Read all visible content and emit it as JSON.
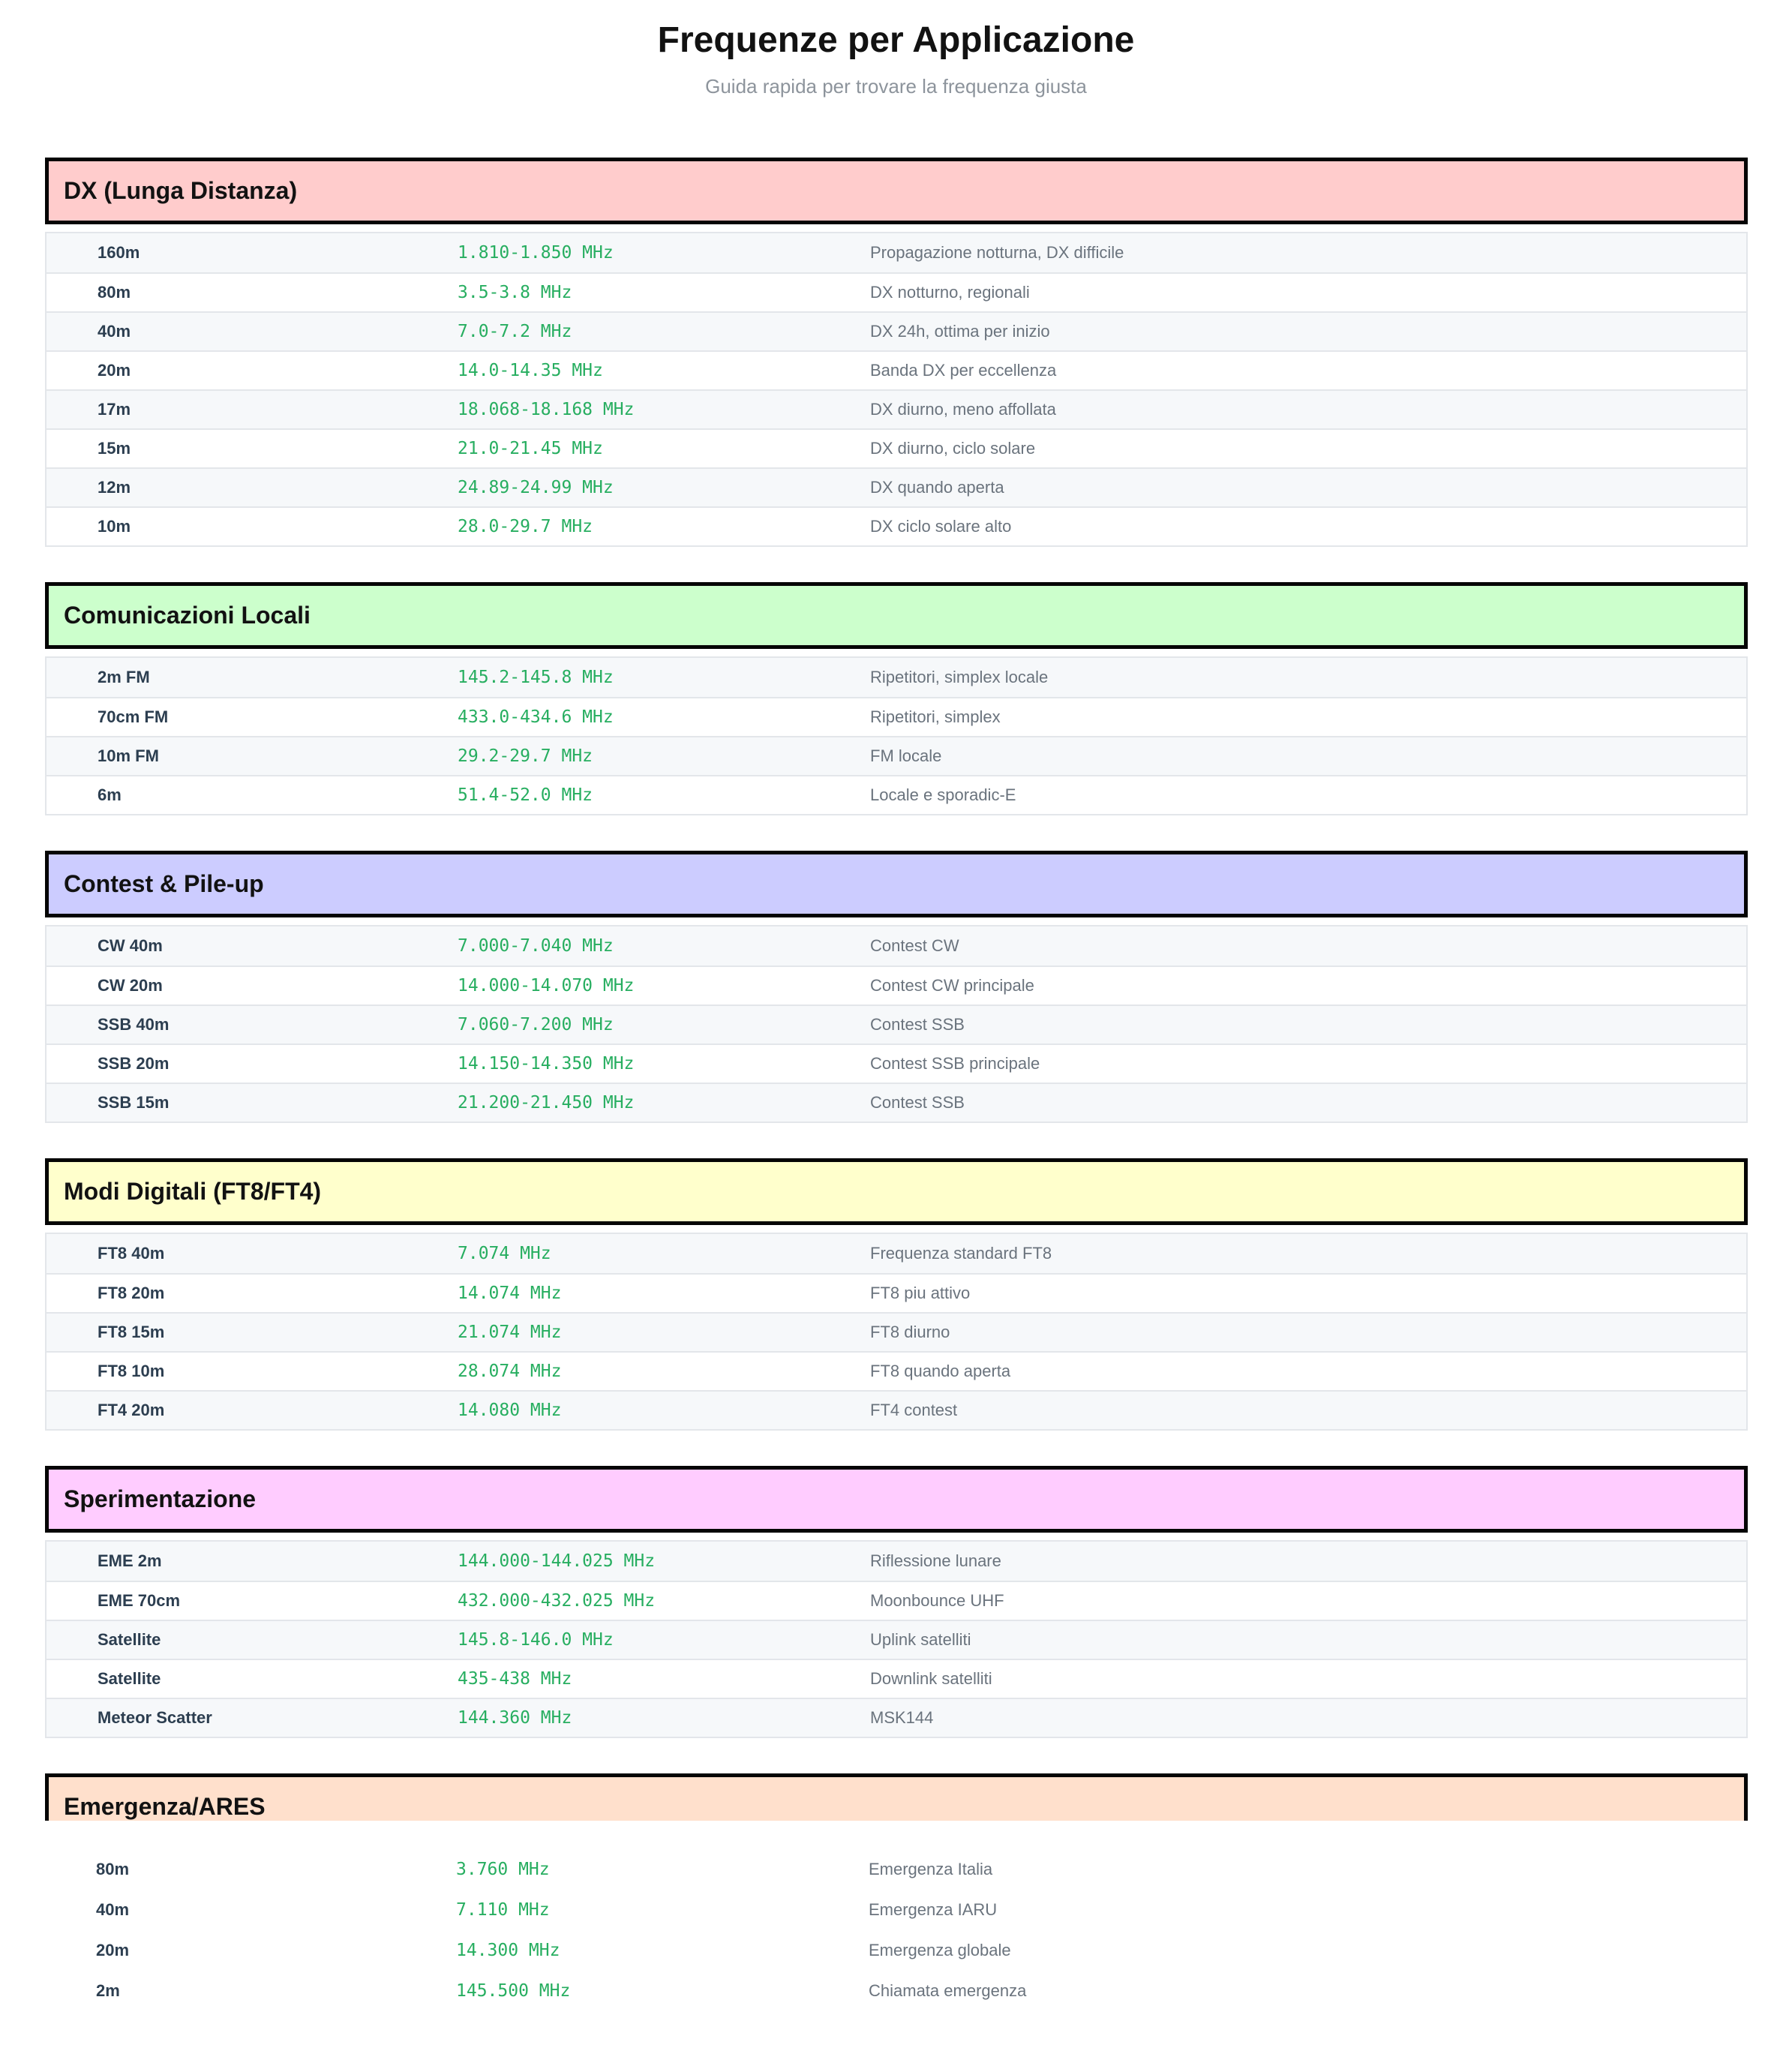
{
  "page": {
    "title": "Frequenze per Applicazione",
    "subtitle": "Guida rapida per trovare la frequenza giusta"
  },
  "colors": {
    "frequency_green": "#27ae60",
    "band_navy": "#2c3e50",
    "description_gray": "#6a737d",
    "stripe_gray": "#f6f8fa",
    "header_border_black": "#050505"
  },
  "sections": [
    {
      "label": "DX (Lunga Distanza)",
      "header_bg": "#ffcccc",
      "rows": [
        {
          "band": "160m",
          "freq": "1.810-1.850 MHz",
          "desc": "Propagazione notturna, DX difficile"
        },
        {
          "band": "80m",
          "freq": "3.5-3.8 MHz",
          "desc": "DX notturno, regionali"
        },
        {
          "band": "40m",
          "freq": "7.0-7.2 MHz",
          "desc": "DX 24h, ottima per inizio"
        },
        {
          "band": "20m",
          "freq": "14.0-14.35 MHz",
          "desc": "Banda DX per eccellenza"
        },
        {
          "band": "17m",
          "freq": "18.068-18.168 MHz",
          "desc": "DX diurno, meno affollata"
        },
        {
          "band": "15m",
          "freq": "21.0-21.45 MHz",
          "desc": "DX diurno, ciclo solare"
        },
        {
          "band": "12m",
          "freq": "24.89-24.99 MHz",
          "desc": "DX quando aperta"
        },
        {
          "band": "10m",
          "freq": "28.0-29.7 MHz",
          "desc": "DX ciclo solare alto"
        }
      ]
    },
    {
      "label": "Comunicazioni Locali",
      "header_bg": "#ccffcc",
      "rows": [
        {
          "band": "2m FM",
          "freq": "145.2-145.8 MHz",
          "desc": "Ripetitori, simplex locale"
        },
        {
          "band": "70cm FM",
          "freq": "433.0-434.6 MHz",
          "desc": "Ripetitori, simplex"
        },
        {
          "band": "10m FM",
          "freq": "29.2-29.7 MHz",
          "desc": "FM locale"
        },
        {
          "band": "6m",
          "freq": "51.4-52.0 MHz",
          "desc": "Locale e sporadic-E"
        }
      ]
    },
    {
      "label": "Contest & Pile-up",
      "header_bg": "#ccccff",
      "rows": [
        {
          "band": "CW 40m",
          "freq": "7.000-7.040 MHz",
          "desc": "Contest CW"
        },
        {
          "band": "CW 20m",
          "freq": "14.000-14.070 MHz",
          "desc": "Contest CW principale"
        },
        {
          "band": "SSB 40m",
          "freq": "7.060-7.200 MHz",
          "desc": "Contest SSB"
        },
        {
          "band": "SSB 20m",
          "freq": "14.150-14.350 MHz",
          "desc": "Contest SSB principale"
        },
        {
          "band": "SSB 15m",
          "freq": "21.200-21.450 MHz",
          "desc": "Contest SSB"
        }
      ]
    },
    {
      "label": "Modi Digitali (FT8/FT4)",
      "header_bg": "#ffffcc",
      "rows": [
        {
          "band": "FT8 40m",
          "freq": "7.074 MHz",
          "desc": "Frequenza standard FT8"
        },
        {
          "band": "FT8 20m",
          "freq": "14.074 MHz",
          "desc": "FT8 piu attivo"
        },
        {
          "band": "FT8 15m",
          "freq": "21.074 MHz",
          "desc": "FT8 diurno"
        },
        {
          "band": "FT8 10m",
          "freq": "28.074 MHz",
          "desc": "FT8 quando aperta"
        },
        {
          "band": "FT4 20m",
          "freq": "14.080 MHz",
          "desc": "FT4 contest"
        }
      ]
    },
    {
      "label": "Sperimentazione",
      "header_bg": "#ffccff",
      "rows": [
        {
          "band": "EME 2m",
          "freq": "144.000-144.025 MHz",
          "desc": "Riflessione lunare"
        },
        {
          "band": "EME 70cm",
          "freq": "432.000-432.025 MHz",
          "desc": "Moonbounce UHF"
        },
        {
          "band": "Satellite",
          "freq": "145.8-146.0 MHz",
          "desc": "Uplink satelliti"
        },
        {
          "band": "Satellite",
          "freq": "435-438 MHz",
          "desc": "Downlink satelliti"
        },
        {
          "band": "Meteor Scatter",
          "freq": "144.360 MHz",
          "desc": "MSK144"
        }
      ]
    },
    {
      "label": "Emergenza/ARES",
      "header_bg": "#ffe0cc",
      "rows": [
        {
          "band": "80m",
          "freq": "3.760 MHz",
          "desc": "Emergenza Italia"
        },
        {
          "band": "40m",
          "freq": "7.110 MHz",
          "desc": "Emergenza IARU"
        },
        {
          "band": "20m",
          "freq": "14.300 MHz",
          "desc": "Emergenza globale"
        },
        {
          "band": "2m",
          "freq": "145.500 MHz",
          "desc": "Chiamata emergenza"
        }
      ]
    }
  ]
}
